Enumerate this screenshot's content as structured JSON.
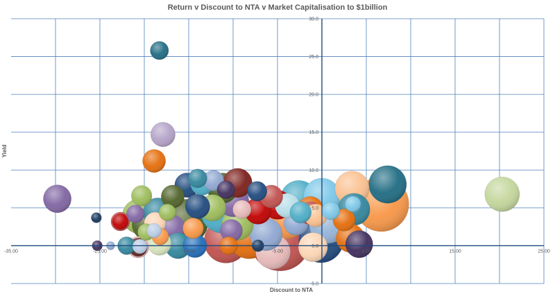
{
  "chart_data": {
    "type": "bubble",
    "title": "Return v Discount to NTA v Market Capitalisation to $1billion",
    "xlabel": "Discount to NTA",
    "ylabel": "Yield",
    "xlim": [
      -35,
      25
    ],
    "ylim": [
      -5,
      30
    ],
    "x_tick_labels": [
      {
        "value": -35,
        "label": "-35.00"
      },
      {
        "value": -25,
        "label": "-25.00"
      },
      {
        "value": -15,
        "label": "-15.00"
      },
      {
        "value": -5,
        "label": "-5.00"
      },
      {
        "value": 5,
        "label": "5.00"
      },
      {
        "value": 15,
        "label": "15.00"
      },
      {
        "value": 25,
        "label": "25.00"
      }
    ],
    "y_tick_labels": [
      {
        "value": -5,
        "label": "-5.0"
      },
      {
        "value": 0,
        "label": "0.0"
      },
      {
        "value": 5,
        "label": "5.0"
      },
      {
        "value": 10,
        "label": "10.0"
      },
      {
        "value": 15,
        "label": "15.0"
      },
      {
        "value": 20,
        "label": "20.0"
      },
      {
        "value": 25,
        "label": "25.0"
      },
      {
        "value": 30,
        "label": "30.0"
      }
    ],
    "x_grid_values": [
      -30,
      -25,
      -20,
      -15,
      -10,
      -5,
      0,
      5,
      10,
      15,
      20,
      25
    ],
    "y_grid_values": [
      -5,
      0,
      5,
      10,
      15,
      20,
      25,
      30
    ],
    "grid": true,
    "legend": "none",
    "points": [
      {
        "x": -4.7,
        "y": 0.6,
        "size": 1000,
        "color": "#c0504d"
      },
      {
        "x": -0.1,
        "y": 0.7,
        "size": 560,
        "color": "#1f497d"
      },
      {
        "x": 6.7,
        "y": 5.5,
        "size": 850,
        "color": "#f79646"
      },
      {
        "x": -10.8,
        "y": 0.6,
        "size": 540,
        "color": "#c0504d"
      },
      {
        "x": -8.2,
        "y": 1.0,
        "size": 480,
        "color": "#e46c0a"
      },
      {
        "x": -15.3,
        "y": 3.2,
        "size": 560,
        "color": "#4f6228"
      },
      {
        "x": -11.2,
        "y": 4.5,
        "size": 520,
        "color": "#4bacc6"
      },
      {
        "x": -7.8,
        "y": 2.6,
        "size": 600,
        "color": "#8064a2"
      },
      {
        "x": -4.0,
        "y": 3.6,
        "size": 470,
        "color": "#f79646"
      },
      {
        "x": 0.7,
        "y": 2.8,
        "size": 400,
        "color": "#95b3d7"
      },
      {
        "x": -2.6,
        "y": 6.2,
        "size": 380,
        "color": "#4bacc6"
      },
      {
        "x": 0.0,
        "y": 6.5,
        "size": 380,
        "color": "#7cc7e8"
      },
      {
        "x": 7.4,
        "y": 8.1,
        "size": 400,
        "color": "#1f6b82"
      },
      {
        "x": 3.4,
        "y": 7.6,
        "size": 330,
        "color": "#fac08f"
      },
      {
        "x": 3.6,
        "y": 4.8,
        "size": 290,
        "color": "#31859c"
      },
      {
        "x": 3.2,
        "y": 1.0,
        "size": 230,
        "color": "#e46c0a"
      },
      {
        "x": 4.2,
        "y": 0.2,
        "size": 210,
        "color": "#3f2d5c"
      },
      {
        "x": -1.0,
        "y": -0.2,
        "size": 240,
        "color": "#fcd5b4"
      },
      {
        "x": -5.5,
        "y": -0.8,
        "size": 340,
        "color": "#e6b9b8"
      },
      {
        "x": -6.3,
        "y": 1.5,
        "size": 300,
        "color": "#8ea6d0"
      },
      {
        "x": -9.5,
        "y": 2.8,
        "size": 280,
        "color": "#9bbb59"
      },
      {
        "x": -10.0,
        "y": 5.9,
        "size": 280,
        "color": "#8064a2"
      },
      {
        "x": -11.2,
        "y": 7.6,
        "size": 260,
        "color": "#4f6228"
      },
      {
        "x": -9.5,
        "y": 8.3,
        "size": 240,
        "color": "#7b1f1b"
      },
      {
        "x": -5.0,
        "y": 5.4,
        "size": 240,
        "color": "#c00000"
      },
      {
        "x": -2.9,
        "y": 3.0,
        "size": 170,
        "color": "#8ea6d0"
      },
      {
        "x": -3.9,
        "y": 5.3,
        "size": 170,
        "color": "#b7dee8"
      },
      {
        "x": -2.4,
        "y": 4.4,
        "size": 130,
        "color": "#4bacc6"
      },
      {
        "x": -1.3,
        "y": 4.3,
        "size": 150,
        "color": "#c0504d"
      },
      {
        "x": -0.7,
        "y": 4.0,
        "size": 150,
        "color": "#fac08f"
      },
      {
        "x": -1.3,
        "y": 4.8,
        "size": 190,
        "color": "#e46c0a"
      },
      {
        "x": 1.0,
        "y": 4.6,
        "size": 90,
        "color": "#7cc7e8"
      },
      {
        "x": 2.5,
        "y": 3.4,
        "size": 140,
        "color": "#e46c0a"
      },
      {
        "x": 3.5,
        "y": 5.5,
        "size": 70,
        "color": "#7cc7e8"
      },
      {
        "x": -15.2,
        "y": 8.0,
        "size": 170,
        "color": "#1f497d"
      },
      {
        "x": -13.5,
        "y": 8.2,
        "size": 150,
        "color": "#4bacc6"
      },
      {
        "x": -12.2,
        "y": 8.6,
        "size": 120,
        "color": "#8ea6d0"
      },
      {
        "x": -14.0,
        "y": 8.9,
        "size": 100,
        "color": "#31859c"
      },
      {
        "x": -14.0,
        "y": 5.2,
        "size": 170,
        "color": "#1f497d"
      },
      {
        "x": -12.3,
        "y": 5.0,
        "size": 200,
        "color": "#9bbb59"
      },
      {
        "x": -10.8,
        "y": 7.4,
        "size": 90,
        "color": "#3f2d5c"
      },
      {
        "x": -9.0,
        "y": 4.8,
        "size": 95,
        "color": "#e6b9b8"
      },
      {
        "x": -7.2,
        "y": 4.6,
        "size": 200,
        "color": "#c00000"
      },
      {
        "x": -7.3,
        "y": 7.2,
        "size": 110,
        "color": "#1f497d"
      },
      {
        "x": -5.7,
        "y": 6.5,
        "size": 150,
        "color": "#c0504d"
      },
      {
        "x": -18.5,
        "y": 4.4,
        "size": 240,
        "color": "#31859c"
      },
      {
        "x": -20.5,
        "y": 3.9,
        "size": 350,
        "color": "#9bbb59"
      },
      {
        "x": -19.6,
        "y": 2.8,
        "size": 280,
        "color": "#4f6228"
      },
      {
        "x": -18.8,
        "y": 3.0,
        "size": 130,
        "color": "#fcd5b4"
      },
      {
        "x": -16.9,
        "y": 2.3,
        "size": 200,
        "color": "#8064a2"
      },
      {
        "x": -16.8,
        "y": 6.5,
        "size": 150,
        "color": "#4f6228"
      },
      {
        "x": -17.4,
        "y": 4.4,
        "size": 80,
        "color": "#9bbb59"
      },
      {
        "x": -14.5,
        "y": 2.3,
        "size": 120,
        "color": "#f79646"
      },
      {
        "x": -10.2,
        "y": 2.0,
        "size": 140,
        "color": "#8064a2"
      },
      {
        "x": -16.2,
        "y": 0.0,
        "size": 190,
        "color": "#31859c"
      },
      {
        "x": -14.3,
        "y": 0.0,
        "size": 160,
        "color": "#1f6bb8"
      },
      {
        "x": -10.5,
        "y": 0.0,
        "size": 90,
        "color": "#e46c0a"
      },
      {
        "x": -18.3,
        "y": 0.3,
        "size": 160,
        "color": "#d7e4bd"
      },
      {
        "x": -18.2,
        "y": 1.2,
        "size": 80,
        "color": "#f79646"
      },
      {
        "x": -18.9,
        "y": 2.0,
        "size": 60,
        "color": "#b9cde5"
      },
      {
        "x": -20.7,
        "y": -0.2,
        "size": 130,
        "color": "#e6b9b8"
      },
      {
        "x": -20.7,
        "y": -0.2,
        "size": 95,
        "color": "#632523"
      },
      {
        "x": -20.5,
        "y": -0.1,
        "size": 60,
        "color": "#b9cde5"
      },
      {
        "x": -20.3,
        "y": 6.6,
        "size": 120,
        "color": "#9bbb59"
      },
      {
        "x": -22.7,
        "y": 3.2,
        "size": 100,
        "color": "#c0504d"
      },
      {
        "x": -22.7,
        "y": 3.2,
        "size": 70,
        "color": "#c00000"
      },
      {
        "x": -21.0,
        "y": 4.2,
        "size": 90,
        "color": "#8064a2"
      },
      {
        "x": -22.0,
        "y": 0.0,
        "size": 90,
        "color": "#31859c"
      },
      {
        "x": -19.8,
        "y": 1.8,
        "size": 80,
        "color": "#9bbb59"
      },
      {
        "x": -18.9,
        "y": 11.2,
        "size": 150,
        "color": "#e46c0a"
      },
      {
        "x": -17.9,
        "y": 14.7,
        "size": 170,
        "color": "#b3a2c7"
      },
      {
        "x": -18.3,
        "y": 25.8,
        "size": 95,
        "color": "#1f6b82"
      },
      {
        "x": -29.8,
        "y": 6.2,
        "size": 220,
        "color": "#8064a2"
      },
      {
        "x": 20.3,
        "y": 6.8,
        "size": 340,
        "color": "#c3d69b"
      },
      {
        "x": -25.4,
        "y": 3.7,
        "size": 30,
        "color": "#17375e"
      },
      {
        "x": -25.3,
        "y": 0.0,
        "size": 30,
        "color": "#3f2d5c"
      },
      {
        "x": -23.8,
        "y": 0.0,
        "size": 20,
        "color": "#8ea6d0"
      },
      {
        "x": -7.2,
        "y": 0.0,
        "size": 40,
        "color": "#17375e"
      }
    ]
  }
}
